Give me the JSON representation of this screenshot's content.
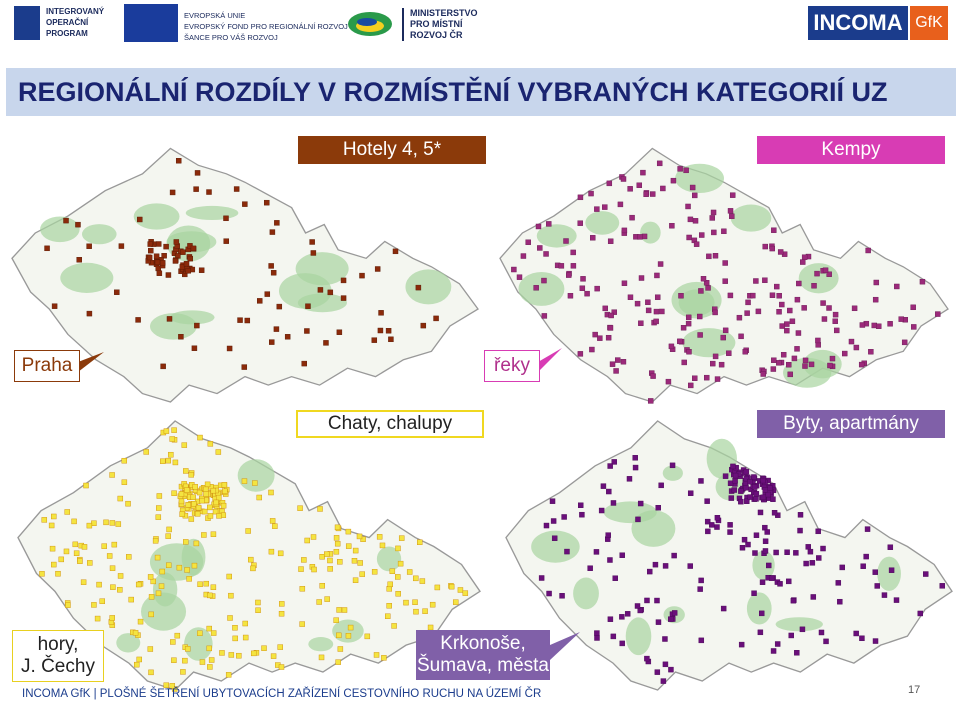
{
  "header": {
    "iop": [
      "INTEGROVANÝ",
      "OPERAČNÍ",
      "PROGRAM"
    ],
    "eu": [
      "EVROPSKÁ UNIE",
      "EVROPSKÝ FOND PRO REGIONÁLNÍ ROZVOJ",
      "ŠANCE PRO VÁŠ ROZVOJ"
    ],
    "mmr": [
      "MINISTERSTVO",
      "PRO MÍSTNÍ",
      "ROZVOJ ČR"
    ],
    "incoma": "INCOMA",
    "gfk": "GfK"
  },
  "title": "REGIONÁLNÍ ROZDÍLY V ROZMÍSTĚNÍ VYBRANÝCH KATEGORIÍ UZ",
  "maps": [
    {
      "label": "Hotely 4, 5*",
      "callout": [
        "Praha"
      ]
    },
    {
      "label": "Kempy",
      "callout": [
        "řeky"
      ]
    },
    {
      "label": "Chaty, chalupy",
      "callout": [
        "hory,",
        "J. Čechy"
      ]
    },
    {
      "label": "Byty, apartmány",
      "callout": [
        "Krkonoše,",
        "Šumava, města"
      ]
    }
  ],
  "footer": {
    "text": "INCOMA GfK | PLOŠNÉ ŠETŘENÍ UBYTOVACÍCH ZAŘÍZENÍ CESTOVNÍHO RUCHU NA ÚZEMÍ ČR",
    "page": "17"
  }
}
